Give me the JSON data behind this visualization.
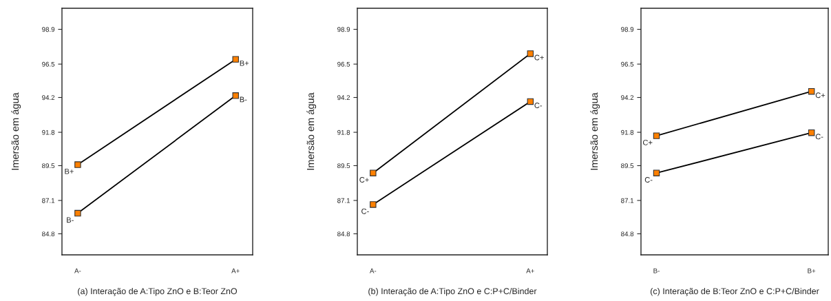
{
  "chart_data": [
    {
      "type": "line",
      "xlabel": "(a) Interação de A:Tipo ZnO e B:Teor ZnO",
      "ylabel": "Imersão em água",
      "categories": [
        "A-",
        "A+"
      ],
      "ylim": [
        83.35,
        100.35
      ],
      "yticks": [
        84.8,
        87.1,
        89.5,
        91.8,
        94.2,
        96.5,
        98.9
      ],
      "marker": "square",
      "grid": false,
      "legend": false,
      "series": [
        {
          "name": "B+",
          "color": "#ff8000",
          "values": [
            89.57,
            96.83
          ]
        },
        {
          "name": "B-",
          "color": "#ff8000",
          "values": [
            86.22,
            94.33
          ]
        }
      ]
    },
    {
      "type": "line",
      "xlabel": "(b) Interação de A:Tipo ZnO e C:P+C/Binder",
      "ylabel": "Imersão em água",
      "categories": [
        "A-",
        "A+"
      ],
      "ylim": [
        83.35,
        100.35
      ],
      "yticks": [
        84.8,
        87.1,
        89.5,
        91.8,
        94.2,
        96.5,
        98.9
      ],
      "marker": "square",
      "grid": false,
      "legend": false,
      "series": [
        {
          "name": "C+",
          "color": "#ff8000",
          "values": [
            88.99,
            97.22
          ]
        },
        {
          "name": "C-",
          "color": "#ff8000",
          "values": [
            86.82,
            93.92
          ]
        }
      ]
    },
    {
      "type": "line",
      "xlabel": "(c) Interação de B:Teor ZnO e C:P+C/Binder",
      "ylabel": "Imersão em água",
      "categories": [
        "B-",
        "B+"
      ],
      "ylim": [
        83.35,
        100.35
      ],
      "yticks": [
        84.8,
        87.1,
        89.5,
        91.8,
        94.2,
        96.5,
        98.9
      ],
      "marker": "square",
      "grid": false,
      "legend": false,
      "series": [
        {
          "name": "C+",
          "color": "#ff8000",
          "values": [
            91.56,
            94.62
          ]
        },
        {
          "name": "C-",
          "color": "#ff8000",
          "values": [
            88.99,
            91.77
          ]
        }
      ]
    }
  ]
}
